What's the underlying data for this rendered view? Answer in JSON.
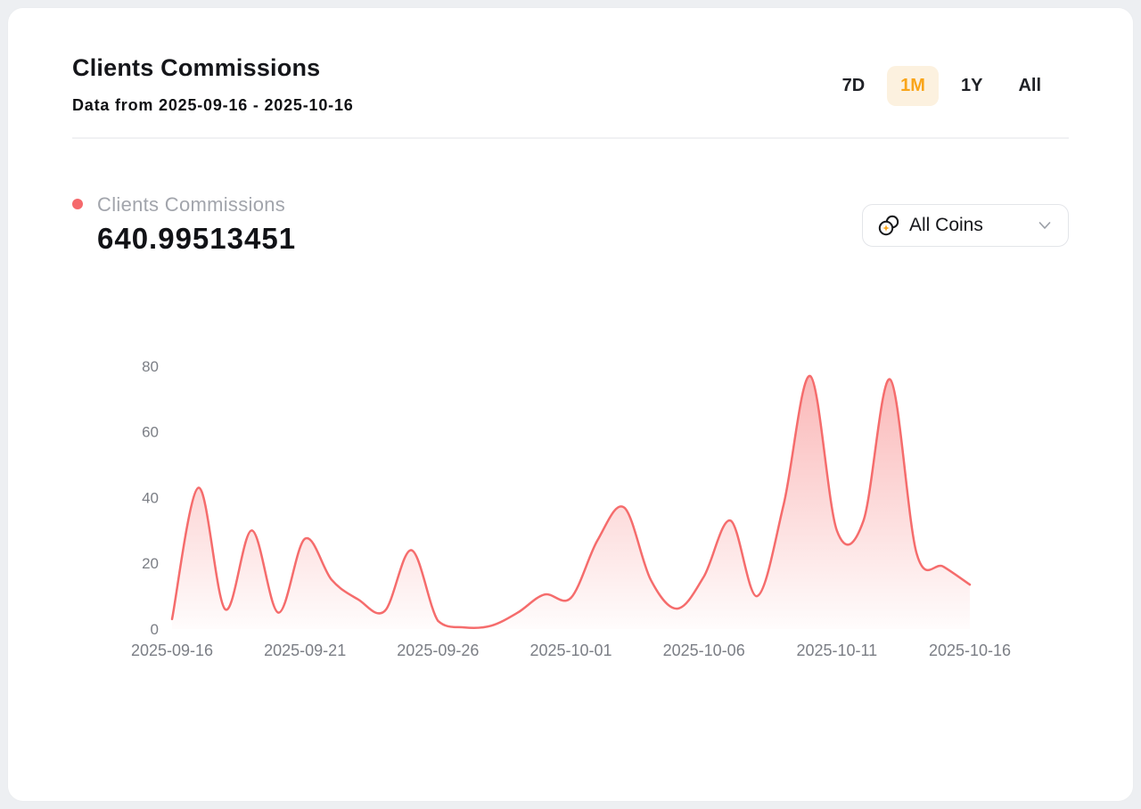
{
  "page": {
    "background": "#edeff2",
    "card_background": "#ffffff"
  },
  "header": {
    "title": "Clients Commissions",
    "subtitle": "Data from 2025-09-16 - 2025-10-16"
  },
  "range_selector": {
    "active": "1M",
    "active_color": "#f9a51a",
    "active_background": "#fcf1df",
    "options": [
      {
        "label": "7D"
      },
      {
        "label": "1M"
      },
      {
        "label": "1Y"
      },
      {
        "label": "All"
      }
    ]
  },
  "legend": {
    "label": "Clients Commissions",
    "value": "640.99513451",
    "dot_color": "#f5696c"
  },
  "coin_filter": {
    "label": "All Coins",
    "icon": "coins-icon",
    "chevron_icon": "chevron-down-icon",
    "accent_color": "#f9a51a"
  },
  "chart_data": {
    "type": "area",
    "title": "Clients Commissions",
    "smooth": true,
    "grid": false,
    "legend_position": "top-left",
    "line_color": "#f56c6c",
    "area_gradient_top": "rgba(245,108,108,0.50)",
    "area_gradient_bottom": "rgba(245,108,108,0.02)",
    "axis_label_color": "#7b7e85",
    "ylim": [
      0,
      80
    ],
    "y_ticks": [
      0,
      20,
      40,
      60,
      80
    ],
    "x_tick_days": [
      0,
      5,
      10,
      15,
      20,
      25,
      30
    ],
    "x_tick_labels": [
      "2025-09-16",
      "2025-09-21",
      "2025-09-26",
      "2025-10-01",
      "2025-10-06",
      "2025-10-11",
      "2025-10-16"
    ],
    "x": [
      "2025-09-16",
      "2025-09-17",
      "2025-09-18",
      "2025-09-19",
      "2025-09-20",
      "2025-09-21",
      "2025-09-22",
      "2025-09-23",
      "2025-09-24",
      "2025-09-25",
      "2025-09-26",
      "2025-09-27",
      "2025-09-28",
      "2025-09-29",
      "2025-09-30",
      "2025-10-01",
      "2025-10-02",
      "2025-10-03",
      "2025-10-04",
      "2025-10-05",
      "2025-10-06",
      "2025-10-07",
      "2025-10-08",
      "2025-10-09",
      "2025-10-10",
      "2025-10-11",
      "2025-10-12",
      "2025-10-13",
      "2025-10-14",
      "2025-10-15",
      "2025-10-16"
    ],
    "series": [
      {
        "name": "Clients Commissions",
        "values": [
          3,
          43,
          6,
          30,
          5,
          27.5,
          15,
          9,
          5.5,
          24,
          2.5,
          0.5,
          1,
          5,
          10.5,
          9.5,
          27,
          37,
          15,
          6.2,
          16,
          33,
          10,
          38,
          77,
          30,
          33,
          76,
          23,
          19,
          13.5
        ]
      }
    ]
  }
}
